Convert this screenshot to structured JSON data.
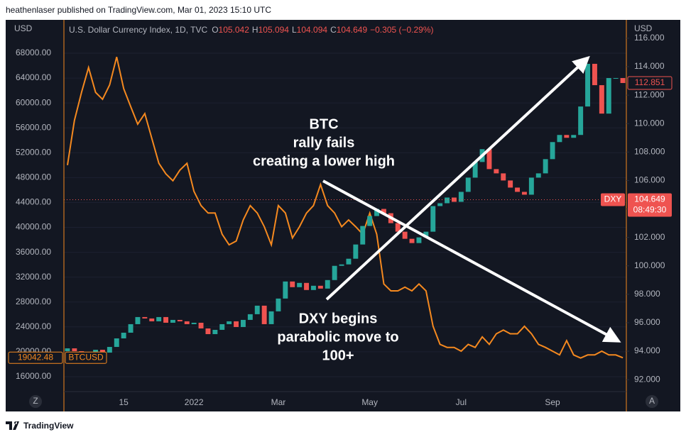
{
  "header": "heathenlaser published on TradingView.com, Mar 01, 2023 15:10 UTC",
  "footer": "TradingView",
  "scale_buttons": [
    "Z",
    "A"
  ],
  "chart_data": {
    "type": "combo",
    "y_unit": "USD",
    "y2_unit": "USD",
    "legend": {
      "symbol": "U.S. Dollar Currency Index, 1D, TVC",
      "fields": [
        {
          "key": "O",
          "value": 105.042
        },
        {
          "key": "H",
          "value": 105.094
        },
        {
          "key": "L",
          "value": 104.094
        },
        {
          "key": "C",
          "value": 104.649
        }
      ],
      "change": "−0.305 (−0.29%)"
    },
    "categories": [
      null,
      null,
      null,
      null,
      null,
      null,
      null,
      null,
      "15",
      null,
      null,
      null,
      null,
      null,
      null,
      null,
      null,
      null,
      "2022",
      null,
      null,
      null,
      null,
      null,
      null,
      null,
      null,
      null,
      null,
      null,
      "Mar",
      null,
      null,
      null,
      null,
      null,
      null,
      null,
      null,
      null,
      null,
      null,
      null,
      "May",
      null,
      null,
      null,
      null,
      null,
      null,
      null,
      null,
      null,
      null,
      null,
      null,
      "Jul",
      null,
      null,
      null,
      null,
      null,
      null,
      null,
      null,
      null,
      null,
      null,
      null,
      "Sep",
      null,
      null,
      null,
      null,
      null,
      null,
      null,
      null,
      null,
      null
    ],
    "series": [
      {
        "name": "BTCUSD",
        "type": "line",
        "axis": "y",
        "color": "#f5891f",
        "values": [
          50000,
          57200,
          61700,
          65700,
          61700,
          60600,
          62900,
          67400,
          62300,
          59400,
          56600,
          58300,
          54300,
          50300,
          48600,
          47500,
          49200,
          50300,
          45800,
          43500,
          42300,
          42300,
          38900,
          37200,
          37800,
          41200,
          43500,
          42300,
          40100,
          37200,
          43500,
          42300,
          38300,
          40100,
          42300,
          43500,
          46900,
          43500,
          42300,
          40100,
          41200,
          40100,
          38900,
          42300,
          38900,
          30900,
          29800,
          29800,
          30400,
          29800,
          30900,
          29800,
          24100,
          21200,
          20700,
          20700,
          20100,
          21200,
          20700,
          22400,
          21200,
          22900,
          23500,
          22900,
          22900,
          24100,
          22900,
          21200,
          20700,
          20100,
          19500,
          21800,
          19500,
          19000,
          19500,
          19500,
          20100,
          19500,
          19500,
          19042.48
        ]
      },
      {
        "name": "DXY",
        "type": "candlestick",
        "axis": "y2",
        "up_color": "#26a69a",
        "down_color": "#ef5350",
        "open": [
          94.0,
          94.2,
          94.0,
          93.9,
          93.8,
          94.1,
          93.9,
          94.3,
          94.9,
          95.3,
          95.9,
          96.4,
          96.3,
          96.1,
          96.4,
          96.0,
          96.2,
          96.1,
          95.9,
          96.0,
          95.6,
          95.2,
          95.5,
          95.9,
          96.1,
          95.7,
          96.2,
          96.6,
          97.2,
          95.9,
          96.8,
          97.7,
          98.9,
          98.5,
          98.8,
          98.3,
          98.6,
          98.4,
          99.0,
          100.0,
          100.1,
          100.5,
          101.5,
          102.8,
          103.5,
          104.0,
          103.7,
          103.0,
          102.4,
          101.9,
          101.6,
          102.0,
          102.4,
          104.2,
          104.4,
          104.8,
          104.5,
          105.2,
          106.2,
          107.3,
          108.2,
          106.8,
          106.5,
          106.0,
          105.5,
          105.2,
          105.0,
          106.2,
          106.5,
          107.5,
          108.7,
          109.2,
          109.0,
          109.2,
          111.2,
          114.2,
          112.7,
          110.7,
          113.2,
          113.2
        ],
        "values": [
          94.2,
          94.0,
          93.9,
          93.8,
          94.1,
          93.9,
          94.3,
          94.9,
          95.3,
          95.9,
          96.4,
          96.3,
          96.1,
          96.4,
          96.0,
          96.2,
          96.1,
          95.9,
          96.0,
          95.6,
          95.2,
          95.5,
          95.9,
          96.1,
          95.7,
          96.2,
          96.6,
          97.2,
          95.9,
          96.8,
          97.7,
          98.9,
          98.5,
          98.8,
          98.3,
          98.6,
          98.4,
          99.0,
          100.0,
          100.1,
          100.5,
          101.5,
          102.8,
          103.5,
          104.0,
          103.7,
          103.0,
          102.4,
          101.9,
          101.6,
          102.0,
          102.4,
          104.2,
          104.4,
          104.8,
          104.5,
          105.2,
          106.2,
          107.3,
          108.2,
          106.8,
          106.5,
          106.0,
          105.5,
          105.2,
          105.0,
          106.2,
          106.5,
          107.5,
          108.7,
          109.2,
          109.0,
          109.2,
          111.2,
          114.2,
          112.7,
          110.7,
          113.2,
          113.2,
          112.851
        ]
      }
    ],
    "ylim": [
      13600,
      73360
    ],
    "yticks": [
      {
        "value": 16000,
        "label": "16000.00"
      },
      {
        "value": 20000,
        "label": "20000.00"
      },
      {
        "value": 24000,
        "label": "24000.00"
      },
      {
        "value": 28000,
        "label": "28000.00"
      },
      {
        "value": 32000,
        "label": "32000.00"
      },
      {
        "value": 36000,
        "label": "36000.00"
      },
      {
        "value": 40000,
        "label": "40000.00"
      },
      {
        "value": 44000,
        "label": "44000.00"
      },
      {
        "value": 48000,
        "label": "48000.00"
      },
      {
        "value": 52000,
        "label": "52000.00"
      },
      {
        "value": 56000,
        "label": "56000.00"
      },
      {
        "value": 60000,
        "label": "60000.00"
      },
      {
        "value": 64000,
        "label": "64000.00"
      },
      {
        "value": 68000,
        "label": "68000.00"
      }
    ],
    "y2lim": [
      91.16,
      117.29
    ],
    "y2ticks": [
      {
        "value": 92,
        "label": "92.000"
      },
      {
        "value": 94,
        "label": "94.000"
      },
      {
        "value": 96,
        "label": "96.000"
      },
      {
        "value": 98,
        "label": "98.000"
      },
      {
        "value": 100,
        "label": "100.000"
      },
      {
        "value": 102,
        "label": "102.000"
      },
      {
        "value": 104,
        "label": "104.000"
      },
      {
        "value": 106,
        "label": "106.000"
      },
      {
        "value": 108,
        "label": "108.000"
      },
      {
        "value": 110,
        "label": "110.000"
      },
      {
        "value": 112,
        "label": "112.000"
      },
      {
        "value": 114,
        "label": "114.000"
      },
      {
        "value": 116,
        "label": "116.000"
      }
    ],
    "price_line": {
      "value": 104.649,
      "countdown": "08:49:30"
    },
    "annotations": [
      {
        "lines": [
          "BTC",
          "rally fails",
          "creating a lower high"
        ]
      },
      {
        "lines": [
          "DXY begins",
          "parabolic move to",
          "100+"
        ]
      }
    ]
  }
}
